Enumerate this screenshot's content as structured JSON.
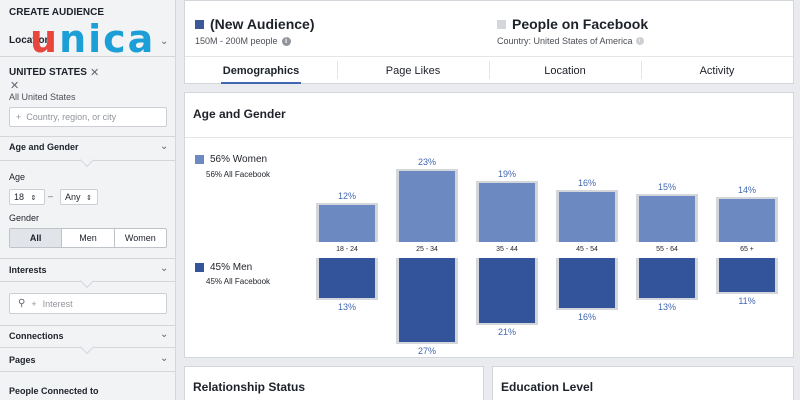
{
  "sidebar": {
    "title": "CREATE AUDIENCE",
    "logo_text": "unica",
    "location_label": "Location",
    "country_chip": "UNITED STATES",
    "all_country": "All United States",
    "country_placeholder": "Country, region, or city",
    "age_gender_label": "Age and Gender",
    "age_label": "Age",
    "age_min": "18",
    "age_dash": "–",
    "age_max": "Any",
    "gender_label": "Gender",
    "gender_options": [
      "All",
      "Men",
      "Women"
    ],
    "gender_selected": "All",
    "interests_label": "Interests",
    "interest_placeholder": "Interest",
    "connections_label": "Connections",
    "pages_label": "Pages",
    "people_connected_label": "People Connected to"
  },
  "header": {
    "audience_name": "(New Audience)",
    "audience_size": "150M - 200M people",
    "compare_name": "People on Facebook",
    "compare_sub": "Country: United States of America",
    "audience_color": "#3b5998",
    "compare_color": "#d3d6db"
  },
  "tabs": [
    "Demographics",
    "Page Likes",
    "Location",
    "Activity"
  ],
  "active_tab": "Demographics",
  "age_gender": {
    "title": "Age and Gender",
    "women_legend": "56% Women",
    "women_sub": "56% All Facebook",
    "men_legend": "45% Men",
    "men_sub": "45% All Facebook",
    "women_color": "#6c89c2",
    "men_color": "#33539a",
    "pct_color": "#4267b2",
    "baseline_color": "#d3d6db"
  },
  "chart_data": {
    "type": "bar",
    "title": "Age and Gender",
    "categories": [
      "18 - 24",
      "25 - 34",
      "35 - 44",
      "45 - 54",
      "55 - 64",
      "65 +"
    ],
    "series": [
      {
        "name": "56% Women",
        "values": [
          12,
          23,
          19,
          16,
          15,
          14
        ]
      },
      {
        "name": "45% Men",
        "values": [
          13,
          27,
          21,
          16,
          13,
          11
        ]
      }
    ],
    "value_labels": {
      "women": [
        "12%",
        "23%",
        "19%",
        "16%",
        "15%",
        "14%"
      ],
      "men": [
        "13%",
        "27%",
        "21%",
        "16%",
        "13%",
        "11%"
      ]
    }
  },
  "bottom": {
    "relationship_title": "Relationship Status",
    "education_title": "Education Level"
  }
}
